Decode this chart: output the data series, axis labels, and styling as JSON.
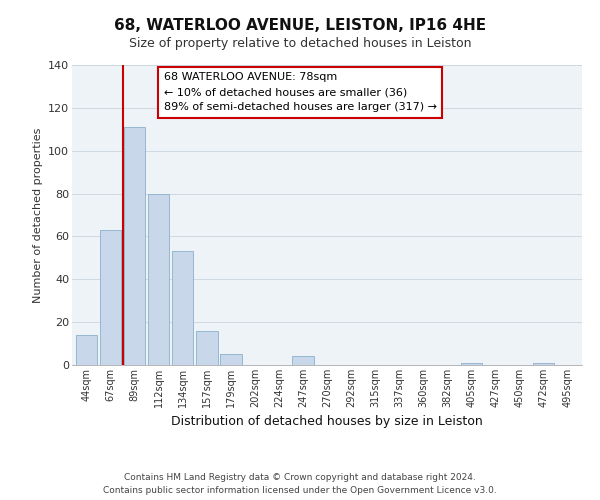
{
  "title": "68, WATERLOO AVENUE, LEISTON, IP16 4HE",
  "subtitle": "Size of property relative to detached houses in Leiston",
  "xlabel": "Distribution of detached houses by size in Leiston",
  "ylabel": "Number of detached properties",
  "categories": [
    "44sqm",
    "67sqm",
    "89sqm",
    "112sqm",
    "134sqm",
    "157sqm",
    "179sqm",
    "202sqm",
    "224sqm",
    "247sqm",
    "270sqm",
    "292sqm",
    "315sqm",
    "337sqm",
    "360sqm",
    "382sqm",
    "405sqm",
    "427sqm",
    "450sqm",
    "472sqm",
    "495sqm"
  ],
  "values": [
    14,
    63,
    111,
    80,
    53,
    16,
    5,
    0,
    0,
    4,
    0,
    0,
    0,
    0,
    0,
    0,
    1,
    0,
    0,
    1,
    0
  ],
  "bar_color": "#c8d8ea",
  "bar_edge_color": "#8ab0cc",
  "vline_color": "#cc0000",
  "annotation_lines": [
    "68 WATERLOO AVENUE: 78sqm",
    "← 10% of detached houses are smaller (36)",
    "89% of semi-detached houses are larger (317) →"
  ],
  "annotation_box_color": "#ffffff",
  "annotation_box_edge": "#cc0000",
  "ylim": [
    0,
    140
  ],
  "yticks": [
    0,
    20,
    40,
    60,
    80,
    100,
    120,
    140
  ],
  "footer_lines": [
    "Contains HM Land Registry data © Crown copyright and database right 2024.",
    "Contains public sector information licensed under the Open Government Licence v3.0."
  ],
  "background_color": "#ffffff",
  "grid_color": "#c8d4de"
}
